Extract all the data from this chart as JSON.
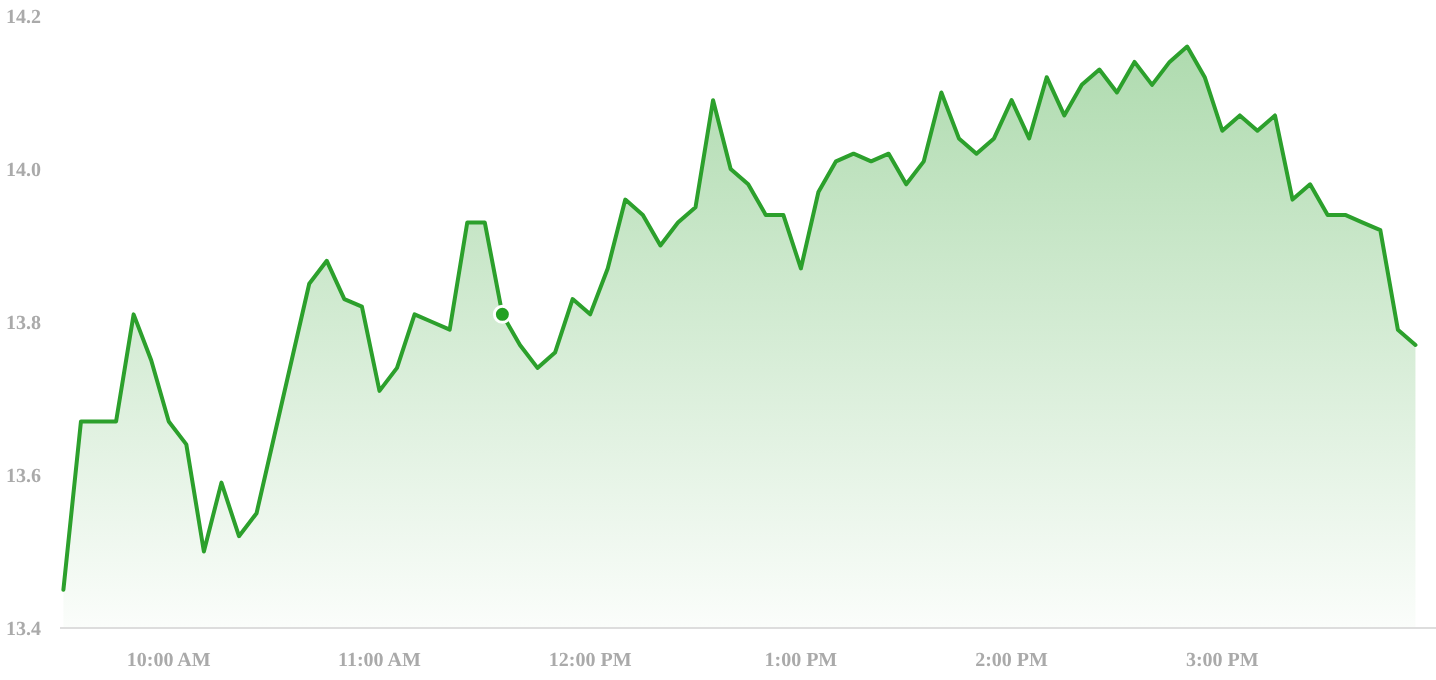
{
  "chart_data": {
    "type": "area",
    "xlim": [
      9.5,
      16
    ],
    "ylim": [
      13.4,
      14.2
    ],
    "xticks": [
      {
        "value": 10,
        "label": "10:00 AM"
      },
      {
        "value": 11,
        "label": "11:00 AM"
      },
      {
        "value": 12,
        "label": "12:00 PM"
      },
      {
        "value": 13,
        "label": "1:00 PM"
      },
      {
        "value": 14,
        "label": "2:00 PM"
      },
      {
        "value": 15,
        "label": "3:00 PM"
      }
    ],
    "yticks": [
      13.4,
      13.6,
      13.8,
      {
        "value": 14,
        "label": "14.0"
      },
      14.2
    ],
    "grid": false,
    "series": [
      {
        "color": "#2ca02c",
        "x": [
          9.5,
          9.5833,
          9.6667,
          9.75,
          9.8333,
          9.9167,
          10,
          10.0833,
          10.1667,
          10.25,
          10.3333,
          10.4167,
          10.5,
          10.5833,
          10.6667,
          10.75,
          10.8333,
          10.9167,
          11,
          11.0833,
          11.1667,
          11.25,
          11.3333,
          11.4167,
          11.5,
          11.5833,
          11.6667,
          11.75,
          11.8333,
          11.9167,
          12,
          12.0833,
          12.1667,
          12.25,
          12.3333,
          12.4167,
          12.5,
          12.5833,
          12.6667,
          12.75,
          12.8333,
          12.9167,
          13,
          13.0833,
          13.1667,
          13.25,
          13.3333,
          13.4167,
          13.5,
          13.5833,
          13.6667,
          13.75,
          13.8333,
          13.9167,
          14,
          14.0833,
          14.1667,
          14.25,
          14.3333,
          14.4167,
          14.5,
          14.5833,
          14.6667,
          14.75,
          14.8333,
          14.9167,
          15,
          15.0833,
          15.1667,
          15.25,
          15.3333,
          15.4167,
          15.5,
          15.5833,
          15.6667,
          15.75,
          15.8333,
          15.9167
        ],
        "values": [
          13.45,
          13.67,
          13.67,
          13.67,
          13.81,
          13.75,
          13.67,
          13.64,
          13.5,
          13.59,
          13.52,
          13.55,
          13.65,
          13.75,
          13.85,
          13.88,
          13.83,
          13.82,
          13.71,
          13.74,
          13.81,
          13.8,
          13.79,
          13.93,
          13.93,
          13.81,
          13.77,
          13.74,
          13.76,
          13.83,
          13.81,
          13.87,
          13.96,
          13.94,
          13.9,
          13.93,
          13.95,
          14.09,
          14.0,
          13.98,
          13.94,
          13.94,
          13.87,
          13.97,
          14.01,
          14.02,
          14.01,
          14.02,
          13.98,
          14.01,
          14.1,
          14.04,
          14.02,
          14.04,
          14.09,
          14.04,
          14.12,
          14.07,
          14.11,
          14.13,
          14.1,
          14.14,
          14.11,
          14.14,
          14.16,
          14.12,
          14.05,
          14.07,
          14.05,
          14.07,
          13.96,
          13.98,
          13.94,
          13.94,
          13.93,
          13.92,
          13.79,
          13.77
        ]
      },
      {
        "type": "scatter",
        "color": "#22a022",
        "marker": "circle",
        "x": [
          11.5833
        ],
        "values": [
          13.81
        ]
      }
    ]
  }
}
